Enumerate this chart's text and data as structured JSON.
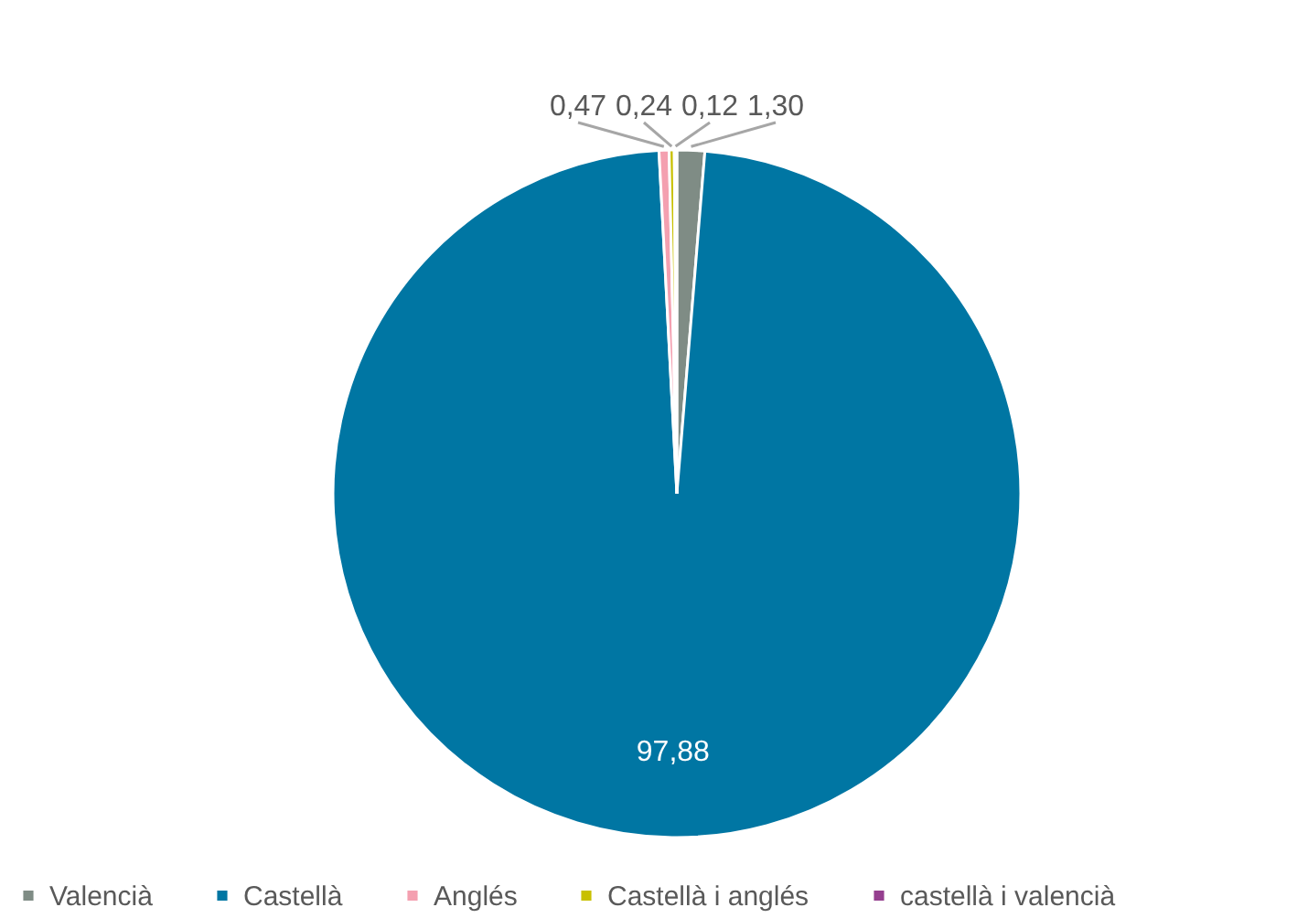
{
  "chart_data": {
    "type": "pie",
    "categories": [
      "Valencià",
      "Castellà",
      "Anglés",
      "Castellà i anglés",
      "castellà i valencià"
    ],
    "values": [
      1.3,
      97.88,
      0.47,
      0.24,
      0.12
    ],
    "value_labels": [
      "1,30",
      "97,88",
      "0,47",
      "0,24",
      "0,12"
    ],
    "colors": [
      "#7f8c85",
      "#0076a3",
      "#f4a0b0",
      "#c8c000",
      "#953f8f"
    ],
    "legend": "bottom"
  }
}
